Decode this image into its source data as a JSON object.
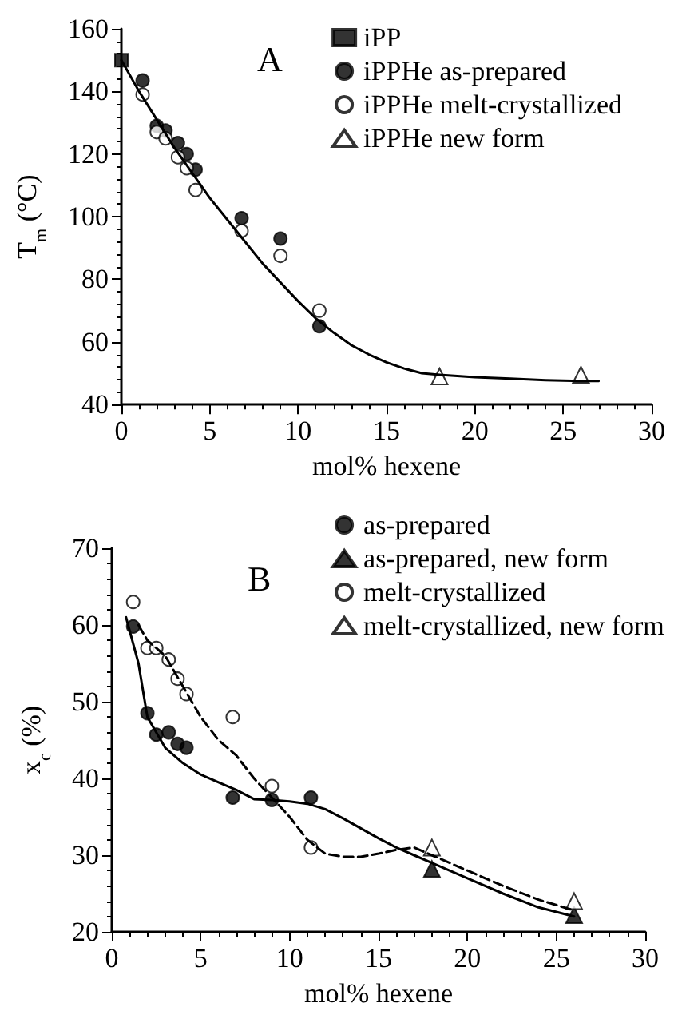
{
  "chart_data": [
    {
      "type": "scatter",
      "annotations": [
        "A"
      ],
      "xlabel": "mol% hexene",
      "ylabel": "T$_{m}$ (°C)",
      "xlim": [
        0,
        30
      ],
      "ylim": [
        40,
        160
      ],
      "xticks": [
        0,
        5,
        10,
        15,
        20,
        25,
        30
      ],
      "yticks": [
        40,
        60,
        80,
        100,
        120,
        140,
        160
      ],
      "grid": false,
      "legend": "top right",
      "series": [
        {
          "name": "iPP",
          "color": "#000000",
          "marker": "square",
          "x": [
            0
          ],
          "values": [
            150
          ]
        },
        {
          "name": "iPPHe as-prepared",
          "color": "#000000",
          "marker": "circle",
          "x": [
            1.2,
            2,
            2.5,
            3.2,
            3.7,
            4.2,
            6.8,
            9,
            11.2
          ],
          "values": [
            143.5,
            129,
            127.5,
            123.5,
            120,
            115,
            99.5,
            93,
            65
          ]
        },
        {
          "name": "iPPHe melt-crystallized",
          "color": "#ffffff",
          "marker": "circle",
          "x": [
            1.2,
            2,
            2.5,
            3.2,
            3.7,
            4.2,
            6.8,
            9,
            11.2
          ],
          "values": [
            139,
            127,
            125,
            119,
            115.5,
            108.5,
            95.5,
            87.5,
            70
          ]
        },
        {
          "name": "iPPHe new form",
          "color": "#ffffff",
          "marker": "triangle",
          "x": [
            18,
            26
          ],
          "values": [
            49,
            49.5
          ]
        },
        {
          "type": "line",
          "color": "#000000",
          "marker": "none",
          "line_style": "solid",
          "x": [
            0,
            1,
            2,
            3,
            4,
            5,
            6,
            7,
            8,
            9,
            10,
            11,
            12,
            13,
            14,
            15,
            16,
            17,
            18,
            20,
            22,
            24,
            26,
            27
          ],
          "values": [
            150,
            140,
            131,
            122,
            114,
            106,
            99,
            92,
            85,
            79,
            73,
            67.5,
            63,
            59,
            56,
            53.5,
            51.5,
            50,
            49.5,
            48.7,
            48.3,
            47.8,
            47.5,
            47.5
          ]
        }
      ]
    },
    {
      "type": "scatter",
      "annotations": [
        "B"
      ],
      "xlabel": "mol% hexene",
      "ylabel": "x$_{c}$ (%)",
      "xlim": [
        0,
        30
      ],
      "ylim": [
        20,
        70
      ],
      "xticks": [
        0,
        5,
        10,
        15,
        20,
        25,
        30
      ],
      "yticks": [
        20,
        30,
        40,
        50,
        60,
        70
      ],
      "grid": false,
      "legend": "top right",
      "series": [
        {
          "name": "as-prepared",
          "color": "#000000",
          "marker": "circle",
          "x": [
            1.2,
            2,
            2.5,
            3.2,
            3.7,
            4.2,
            6.8,
            9,
            11.2
          ],
          "values": [
            59.8,
            48.5,
            45.7,
            46,
            44.5,
            44,
            37.5,
            37.2,
            37.5
          ]
        },
        {
          "name": "as-prepared, new form",
          "color": "#000000",
          "marker": "triangle",
          "x": [
            18,
            26
          ],
          "values": [
            28.2,
            22.2
          ]
        },
        {
          "name": "melt-crystallized",
          "color": "#ffffff",
          "marker": "circle",
          "x": [
            1.2,
            2,
            2.5,
            3.2,
            3.7,
            4.2,
            6.8,
            9,
            11.2
          ],
          "values": [
            63,
            57,
            57,
            55.5,
            53,
            51,
            48,
            39,
            31
          ]
        },
        {
          "name": "melt-crystallized, new form",
          "color": "#ffffff",
          "marker": "triangle",
          "x": [
            18,
            26
          ],
          "values": [
            31,
            24
          ]
        },
        {
          "type": "line",
          "color": "#000000",
          "marker": "none",
          "line_style": "solid",
          "x": [
            0.8,
            1.5,
            2,
            3,
            4,
            5,
            6,
            7,
            8,
            9,
            10,
            11,
            12,
            13,
            14,
            15,
            16,
            17,
            18,
            20,
            22,
            24,
            26
          ],
          "values": [
            61,
            55,
            48,
            44,
            42,
            40.5,
            39.5,
            38.5,
            37.3,
            37.2,
            37,
            36.7,
            36,
            34.8,
            33.5,
            32.2,
            31,
            30,
            29,
            27,
            25,
            23.2,
            22
          ]
        },
        {
          "type": "line",
          "color": "#000000",
          "marker": "none",
          "line_style": "dashed",
          "x": [
            1.5,
            2,
            3,
            4,
            5,
            6,
            7,
            8,
            9,
            10,
            11,
            12,
            13,
            14,
            15,
            16,
            17,
            18,
            20,
            22,
            24,
            26
          ],
          "values": [
            60,
            58,
            56,
            52,
            48,
            45,
            43,
            40,
            37.5,
            35,
            32,
            30.2,
            29.8,
            29.8,
            30.2,
            30.7,
            31,
            30,
            28,
            26,
            24.2,
            22.8
          ]
        }
      ]
    }
  ]
}
